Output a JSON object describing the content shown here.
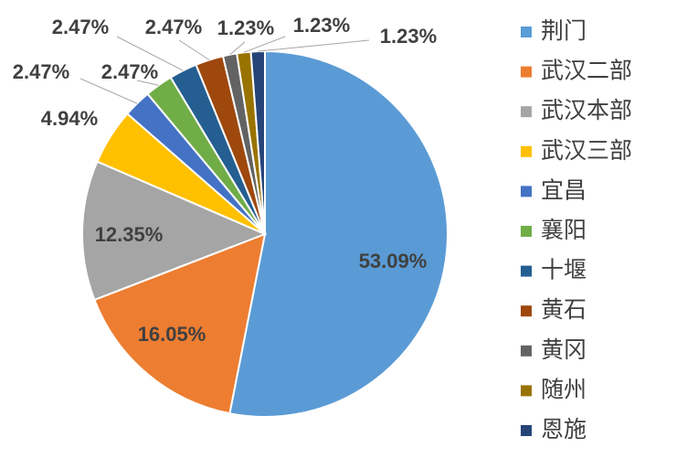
{
  "chart_data": {
    "type": "pie",
    "title": "",
    "legend_position": "right",
    "categories": [
      "荆门",
      "武汉二部",
      "武汉本部",
      "武汉三部",
      "宜昌",
      "襄阳",
      "十堰",
      "黄石",
      "黄冈",
      "随州",
      "恩施"
    ],
    "values": [
      53.09,
      16.05,
      12.35,
      4.94,
      2.47,
      2.47,
      2.47,
      2.47,
      1.23,
      1.23,
      1.23
    ],
    "labels": [
      "53.09%",
      "16.05%",
      "12.35%",
      "4.94%",
      "2.47%",
      "2.47%",
      "2.47%",
      "2.47%",
      "1.23%",
      "1.23%",
      "1.23%"
    ],
    "colors": [
      "#5b9bd5",
      "#ed7d31",
      "#a5a5a5",
      "#ffc000",
      "#4472c4",
      "#70ad47",
      "#255e91",
      "#9e480e",
      "#636363",
      "#997300",
      "#264478"
    ]
  }
}
